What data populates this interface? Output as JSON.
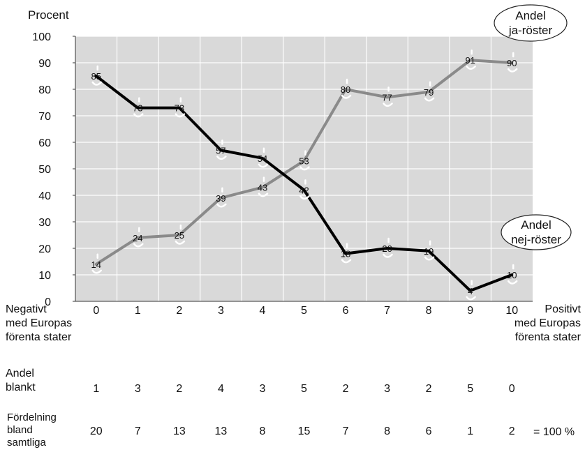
{
  "chart_data": {
    "type": "line",
    "ylabel": "Procent",
    "ylim": [
      0,
      100
    ],
    "yticks": [
      0,
      10,
      20,
      30,
      40,
      50,
      60,
      70,
      80,
      90,
      100
    ],
    "categories": [
      "0",
      "1",
      "2",
      "3",
      "4",
      "5",
      "6",
      "7",
      "8",
      "9",
      "10"
    ],
    "x_left_label": "Negativt\nmed Europas\nförenta stater",
    "x_right_label": "Positivt\nmed Europas\nförenta stater",
    "grid": true,
    "series": [
      {
        "name": "Andel\nnej-röster",
        "color": "#000000",
        "values": [
          85,
          73,
          73,
          57,
          54,
          42,
          18,
          20,
          19,
          4,
          10
        ],
        "labels": [
          "85",
          "73",
          "73",
          "57",
          "54",
          "42",
          "18",
          "20",
          "19",
          "4",
          "10"
        ]
      },
      {
        "name": "Andel\nja-röster",
        "color": "#8a8a8a",
        "values": [
          14,
          24,
          25,
          39,
          43,
          53,
          80,
          77,
          79,
          91,
          90
        ],
        "labels": [
          "14",
          "24",
          "25",
          "39",
          "43",
          "53",
          "80",
          "77",
          "79",
          "91",
          "90"
        ]
      }
    ],
    "plot_background": "#d9d9d9",
    "grid_color": "#ffffff"
  },
  "rows": {
    "blank_label": "Andel\nblankt",
    "blank_values": [
      "1",
      "3",
      "2",
      "4",
      "3",
      "5",
      "2",
      "3",
      "2",
      "5",
      "0"
    ],
    "dist_label": "Fördelning\nbland\nsamtliga",
    "dist_values": [
      "20",
      "7",
      "13",
      "13",
      "8",
      "15",
      "7",
      "8",
      "6",
      "1",
      "2"
    ],
    "dist_total": "= 100 %"
  }
}
